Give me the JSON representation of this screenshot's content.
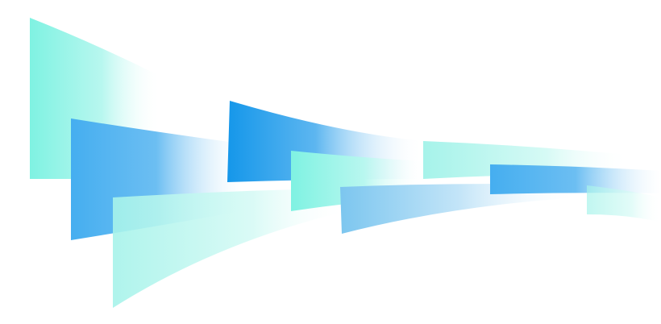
{
  "colors": {
    "background": "#ffffff",
    "teal": "#7ff2e2",
    "light_teal": "#a6f3ea",
    "blue": "#45aef0",
    "deep_blue": "#1597ea",
    "sky_blue": "#7cc6ef"
  }
}
